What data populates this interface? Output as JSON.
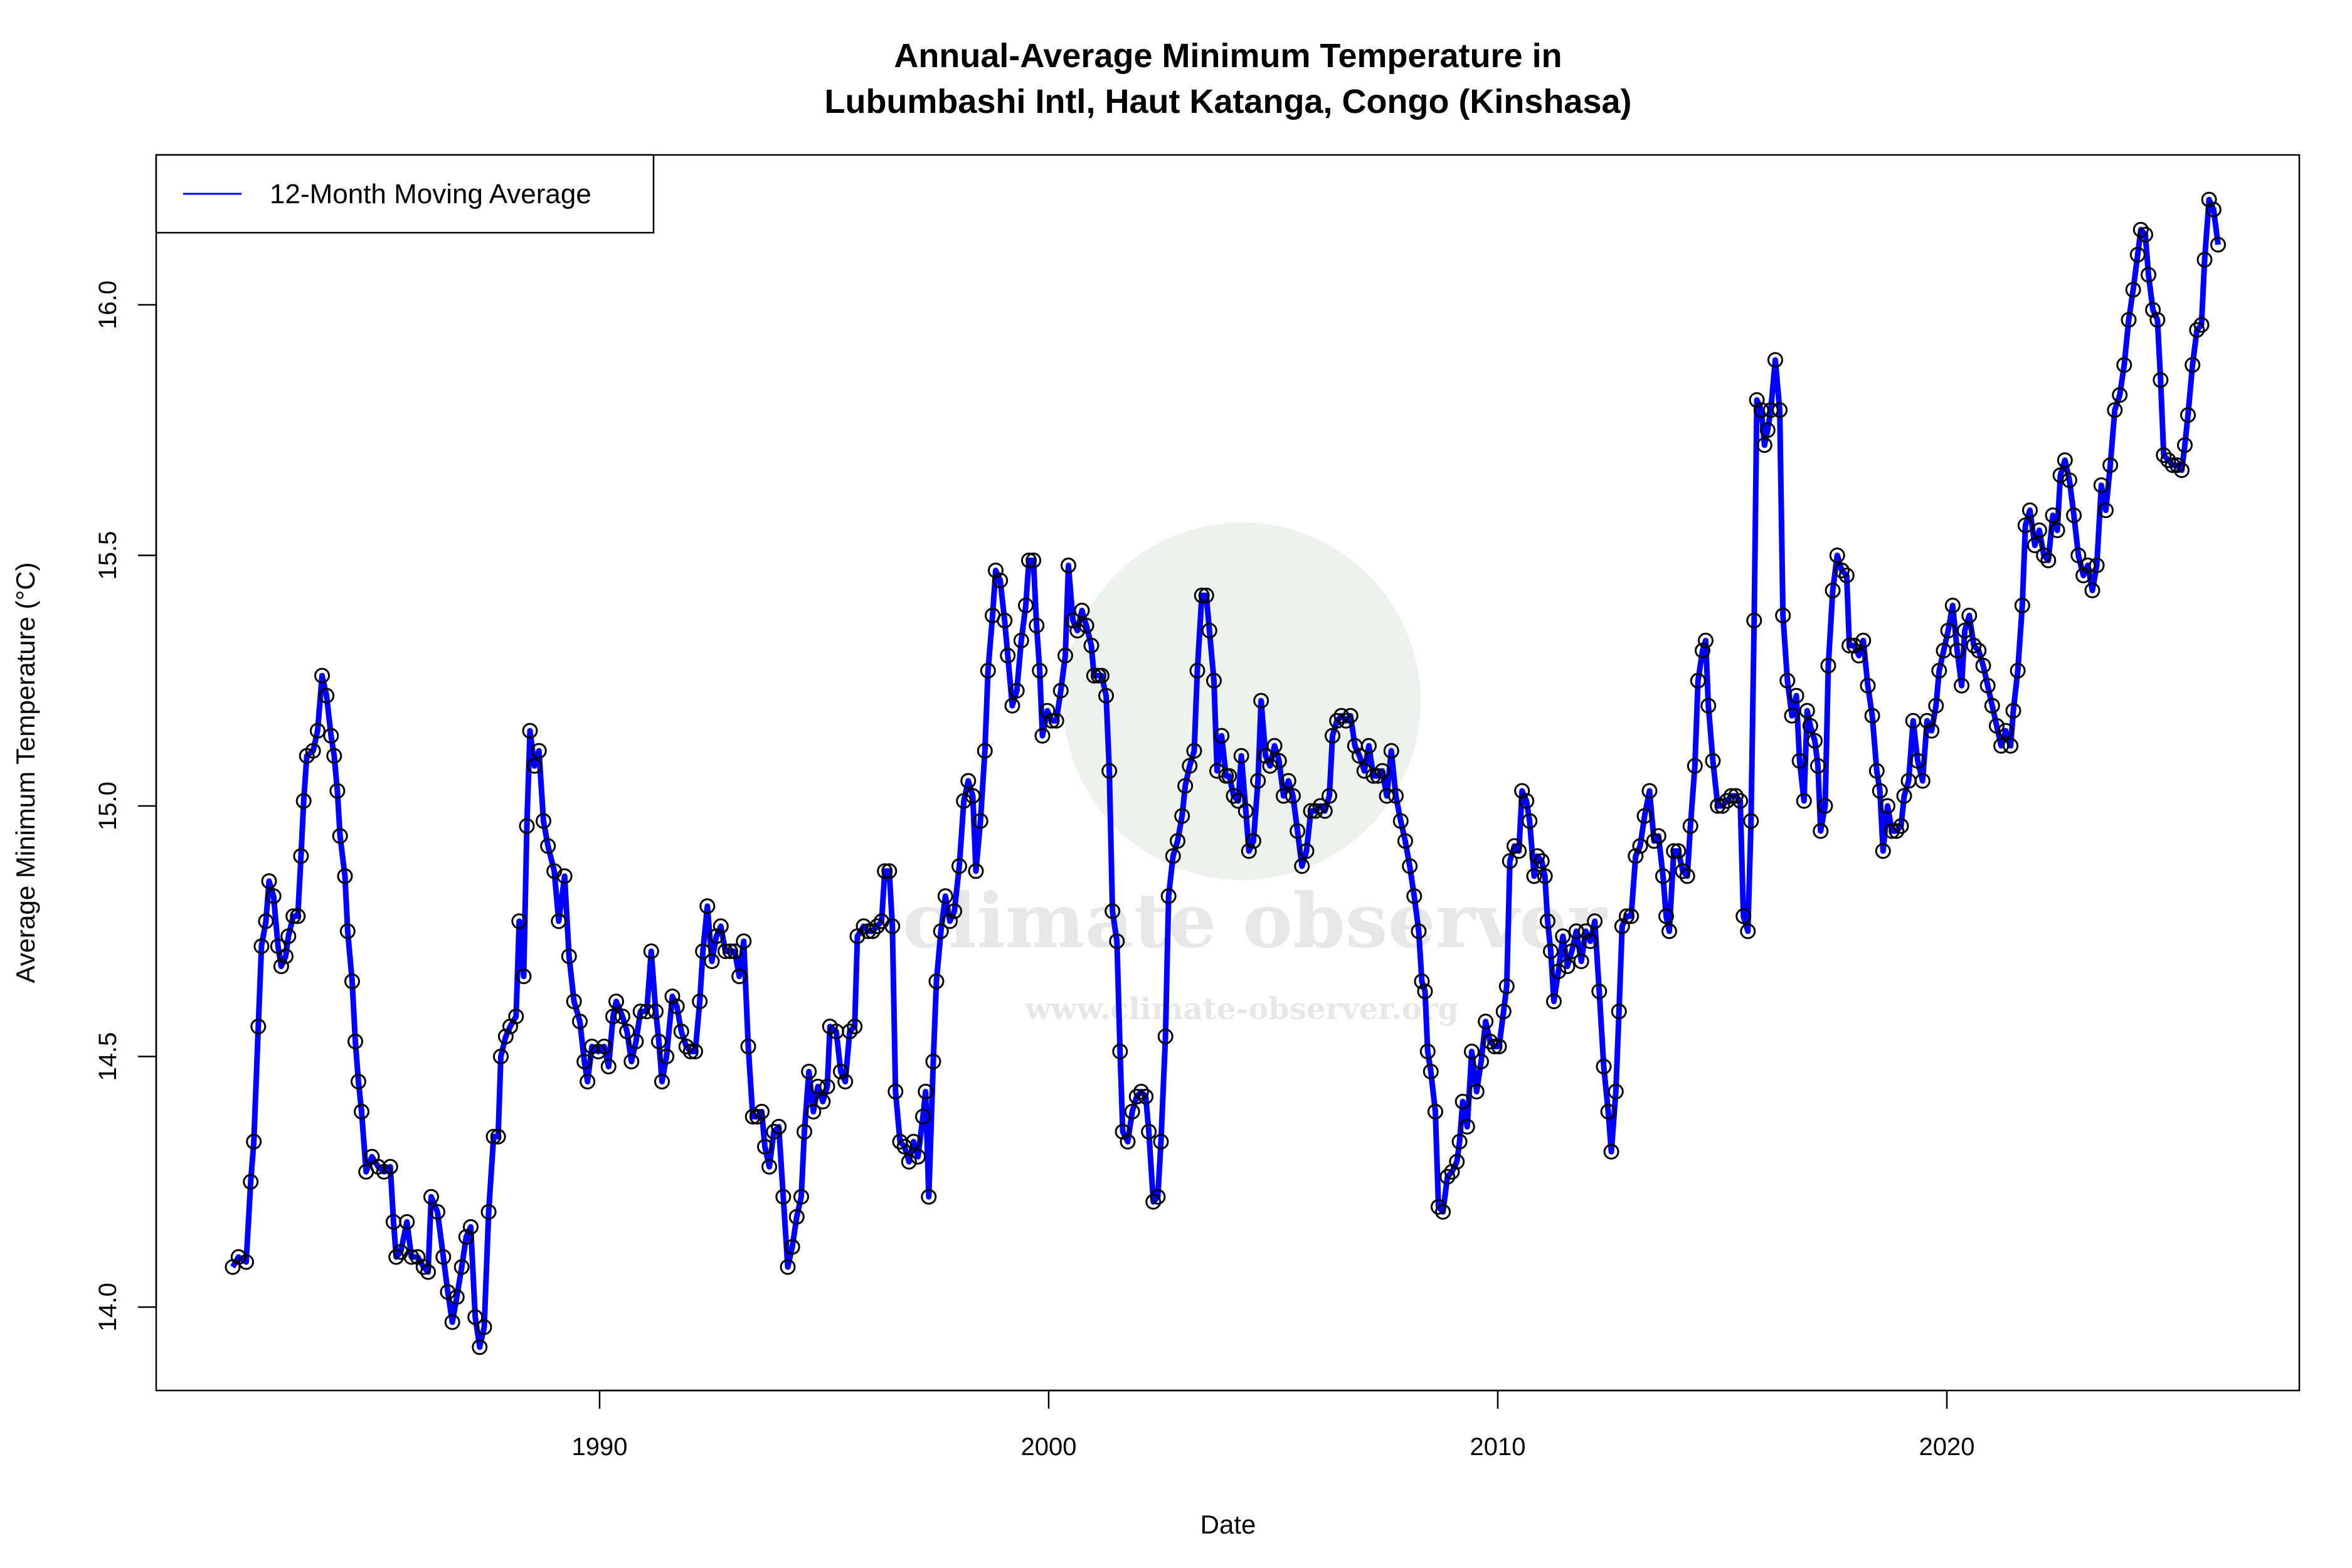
{
  "chart_data": {
    "type": "line",
    "title_line1": "Annual-Average Minimum Temperature in",
    "title_line2": "Lubumbashi Intl, Haut Katanga, Congo (Kinshasa)",
    "xlabel": "Date",
    "ylabel": "Average Minimum Temperature (°C)",
    "xlim": [
      1981.0,
      2026.7
    ],
    "ylim": [
      13.88,
      16.3
    ],
    "x_ticks": [
      1990,
      2000,
      2010,
      2020
    ],
    "x_tick_labels": [
      "1990",
      "2000",
      "2010",
      "2020"
    ],
    "y_ticks": [
      14.0,
      14.5,
      15.0,
      15.5,
      16.0
    ],
    "y_tick_labels": [
      "14.0",
      "14.5",
      "15.0",
      "15.5",
      "16.0"
    ],
    "grid": false,
    "legend": {
      "position": "top-left",
      "entries": [
        "12-Month Moving Average"
      ]
    },
    "line_color": "#0000ff",
    "marker": "open-circle",
    "marker_color": "#000000",
    "watermark": {
      "text": "climate observer",
      "url": "www.climate-observer.org"
    },
    "series": [
      {
        "name": "12-Month Moving Average",
        "x": [
          1981.83,
          1981.96,
          1982.13,
          1982.23,
          1982.3,
          1982.4,
          1982.47,
          1982.57,
          1982.64,
          1982.74,
          1982.84,
          1982.91,
          1983.01,
          1983.07,
          1983.18,
          1983.28,
          1983.35,
          1983.41,
          1983.48,
          1983.62,
          1983.72,
          1983.82,
          1983.92,
          1984.02,
          1984.09,
          1984.16,
          1984.22,
          1984.33,
          1984.39,
          1984.49,
          1984.56,
          1984.63,
          1984.7,
          1984.8,
          1984.93,
          1985.07,
          1985.2,
          1985.34,
          1985.41,
          1985.47,
          1985.57,
          1985.71,
          1985.81,
          1985.95,
          1986.08,
          1986.18,
          1986.25,
          1986.39,
          1986.52,
          1986.62,
          1986.72,
          1986.82,
          1986.93,
          1987.03,
          1987.13,
          1987.23,
          1987.33,
          1987.43,
          1987.53,
          1987.64,
          1987.74,
          1987.8,
          1987.91,
          1988.01,
          1988.14,
          1988.21,
          1988.31,
          1988.38,
          1988.45,
          1988.55,
          1988.65,
          1988.75,
          1988.85,
          1988.99,
          1989.09,
          1989.22,
          1989.32,
          1989.43,
          1989.56,
          1989.66,
          1989.73,
          1989.83,
          1989.97,
          1990.1,
          1990.2,
          1990.3,
          1990.37,
          1990.51,
          1990.61,
          1990.71,
          1990.81,
          1990.91,
          1991.05,
          1991.15,
          1991.25,
          1991.32,
          1991.39,
          1991.49,
          1991.62,
          1991.72,
          1991.82,
          1991.93,
          1992.03,
          1992.13,
          1992.23,
          1992.3,
          1992.4,
          1992.5,
          1992.6,
          1992.7,
          1992.8,
          1992.91,
          1993.01,
          1993.11,
          1993.21,
          1993.31,
          1993.41,
          1993.51,
          1993.61,
          1993.68,
          1993.78,
          1993.88,
          1993.99,
          1994.09,
          1994.19,
          1994.29,
          1994.39,
          1994.49,
          1994.56,
          1994.66,
          1994.76,
          1994.86,
          1994.97,
          1995.07,
          1995.13,
          1995.27,
          1995.37,
          1995.47,
          1995.57,
          1995.68,
          1995.74,
          1995.88,
          1995.98,
          1996.08,
          1996.18,
          1996.28,
          1996.35,
          1996.45,
          1996.52,
          1996.59,
          1996.69,
          1996.79,
          1996.89,
          1996.99,
          1997.09,
          1997.2,
          1997.26,
          1997.33,
          1997.43,
          1997.5,
          1997.6,
          1997.7,
          1997.8,
          1997.9,
          1998.01,
          1998.11,
          1998.21,
          1998.31,
          1998.38,
          1998.48,
          1998.58,
          1998.65,
          1998.75,
          1998.82,
          1998.92,
          1999.02,
          1999.09,
          1999.19,
          1999.29,
          1999.39,
          1999.49,
          1999.56,
          1999.66,
          1999.73,
          1999.8,
          1999.86,
          1999.97,
          2000.07,
          2000.17,
          2000.27,
          2000.37,
          2000.44,
          2000.54,
          2000.64,
          2000.74,
          2000.84,
          2000.95,
          2001.01,
          2001.11,
          2001.18,
          2001.28,
          2001.35,
          2001.42,
          2001.52,
          2001.59,
          2001.65,
          2001.76,
          2001.86,
          2001.96,
          2002.06,
          2002.16,
          2002.23,
          2002.33,
          2002.43,
          2002.5,
          2002.6,
          2002.67,
          2002.77,
          2002.87,
          2002.97,
          2003.04,
          2003.14,
          2003.24,
          2003.31,
          2003.41,
          2003.51,
          2003.58,
          2003.68,
          2003.75,
          2003.85,
          2003.95,
          2004.02,
          2004.12,
          2004.22,
          2004.29,
          2004.39,
          2004.46,
          2004.56,
          2004.66,
          2004.73,
          2004.83,
          2004.93,
          2005.03,
          2005.13,
          2005.23,
          2005.34,
          2005.44,
          2005.54,
          2005.64,
          2005.74,
          2005.84,
          2005.94,
          2006.05,
          2006.15,
          2006.25,
          2006.32,
          2006.42,
          2006.52,
          2006.62,
          2006.72,
          2006.82,
          2006.92,
          2007.03,
          2007.13,
          2007.23,
          2007.33,
          2007.43,
          2007.53,
          2007.63,
          2007.73,
          2007.84,
          2007.94,
          2008.04,
          2008.14,
          2008.24,
          2008.31,
          2008.38,
          2008.44,
          2008.51,
          2008.61,
          2008.68,
          2008.78,
          2008.88,
          2008.98,
          2009.09,
          2009.15,
          2009.22,
          2009.32,
          2009.42,
          2009.53,
          2009.63,
          2009.73,
          2009.83,
          2009.93,
          2010.03,
          2010.13,
          2010.2,
          2010.27,
          2010.37,
          2010.47,
          2010.54,
          2010.64,
          2010.71,
          2010.81,
          2010.88,
          2010.98,
          2011.05,
          2011.11,
          2011.18,
          2011.25,
          2011.35,
          2011.45,
          2011.55,
          2011.65,
          2011.75,
          2011.86,
          2011.96,
          2012.06,
          2012.16,
          2012.26,
          2012.36,
          2012.46,
          2012.53,
          2012.63,
          2012.7,
          2012.77,
          2012.87,
          2012.97,
          2013.07,
          2013.17,
          2013.27,
          2013.38,
          2013.48,
          2013.58,
          2013.68,
          2013.75,
          2013.82,
          2013.92,
          2014.02,
          2014.12,
          2014.22,
          2014.29,
          2014.39,
          2014.46,
          2014.56,
          2014.63,
          2014.69,
          2014.79,
          2014.9,
          2015.0,
          2015.1,
          2015.2,
          2015.3,
          2015.4,
          2015.47,
          2015.57,
          2015.64,
          2015.71,
          2015.77,
          2015.87,
          2015.94,
          2016.01,
          2016.08,
          2016.18,
          2016.28,
          2016.35,
          2016.45,
          2016.55,
          2016.65,
          2016.72,
          2016.82,
          2016.89,
          2016.96,
          2017.06,
          2017.13,
          2017.19,
          2017.29,
          2017.36,
          2017.46,
          2017.56,
          2017.66,
          2017.77,
          2017.83,
          2017.94,
          2018.04,
          2018.14,
          2018.24,
          2018.34,
          2018.44,
          2018.51,
          2018.58,
          2018.68,
          2018.78,
          2018.88,
          2018.98,
          2019.05,
          2019.15,
          2019.25,
          2019.35,
          2019.46,
          2019.56,
          2019.66,
          2019.76,
          2019.83,
          2019.93,
          2020.03,
          2020.13,
          2020.23,
          2020.33,
          2020.4,
          2020.5,
          2020.6,
          2020.71,
          2020.81,
          2020.91,
          2021.01,
          2021.11,
          2021.21,
          2021.31,
          2021.42,
          2021.48,
          2021.58,
          2021.68,
          2021.75,
          2021.85,
          2021.96,
          2022.06,
          2022.16,
          2022.26,
          2022.36,
          2022.46,
          2022.53,
          2022.63,
          2022.73,
          2022.83,
          2022.93,
          2023.04,
          2023.14,
          2023.24,
          2023.34,
          2023.44,
          2023.54,
          2023.64,
          2023.74,
          2023.85,
          2023.95,
          2024.05,
          2024.15,
          2024.25,
          2024.32,
          2024.42,
          2024.49,
          2024.59,
          2024.69,
          2024.76,
          2024.83,
          2024.93,
          2025.03,
          2025.13,
          2025.23,
          2025.3,
          2025.37,
          2025.47,
          2025.57,
          2025.67,
          2025.74,
          2025.84,
          2025.94,
          2026.04
        ],
        "y": [
          14.08,
          14.1,
          14.09,
          14.25,
          14.33,
          14.56,
          14.72,
          14.77,
          14.85,
          14.82,
          14.72,
          14.68,
          14.7,
          14.74,
          14.78,
          14.78,
          14.9,
          15.01,
          15.1,
          15.11,
          15.15,
          15.26,
          15.22,
          15.14,
          15.1,
          15.03,
          14.94,
          14.86,
          14.75,
          14.65,
          14.53,
          14.45,
          14.39,
          14.27,
          14.3,
          14.28,
          14.27,
          14.28,
          14.17,
          14.1,
          14.11,
          14.17,
          14.1,
          14.1,
          14.08,
          14.07,
          14.22,
          14.19,
          14.1,
          14.03,
          13.97,
          14.02,
          14.08,
          14.14,
          14.16,
          13.98,
          13.92,
          13.96,
          14.19,
          14.34,
          14.34,
          14.5,
          14.54,
          14.56,
          14.58,
          14.77,
          14.66,
          14.96,
          15.15,
          15.08,
          15.11,
          14.97,
          14.92,
          14.87,
          14.77,
          14.86,
          14.7,
          14.61,
          14.57,
          14.49,
          14.45,
          14.52,
          14.51,
          14.52,
          14.48,
          14.58,
          14.61,
          14.58,
          14.55,
          14.49,
          14.53,
          14.59,
          14.59,
          14.71,
          14.59,
          14.53,
          14.45,
          14.5,
          14.62,
          14.6,
          14.55,
          14.52,
          14.51,
          14.51,
          14.61,
          14.71,
          14.8,
          14.69,
          14.74,
          14.76,
          14.71,
          14.71,
          14.71,
          14.66,
          14.73,
          14.52,
          14.38,
          14.38,
          14.39,
          14.32,
          14.28,
          14.35,
          14.36,
          14.22,
          14.08,
          14.12,
          14.18,
          14.22,
          14.35,
          14.47,
          14.39,
          14.44,
          14.41,
          14.44,
          14.56,
          14.55,
          14.47,
          14.45,
          14.55,
          14.56,
          14.74,
          14.76,
          14.75,
          14.75,
          14.76,
          14.77,
          14.87,
          14.87,
          14.76,
          14.43,
          14.33,
          14.32,
          14.29,
          14.33,
          14.3,
          14.38,
          14.43,
          14.22,
          14.49,
          14.65,
          14.75,
          14.82,
          14.77,
          14.79,
          14.88,
          15.01,
          15.05,
          15.02,
          14.87,
          14.97,
          15.11,
          15.27,
          15.38,
          15.47,
          15.45,
          15.37,
          15.3,
          15.2,
          15.23,
          15.33,
          15.4,
          15.49,
          15.49,
          15.36,
          15.27,
          15.14,
          15.19,
          15.17,
          15.17,
          15.23,
          15.3,
          15.48,
          15.37,
          15.35,
          15.39,
          15.36,
          15.32,
          15.26,
          15.26,
          15.26,
          15.22,
          15.07,
          14.79,
          14.73,
          14.51,
          14.35,
          14.33,
          14.39,
          14.42,
          14.43,
          14.42,
          14.35,
          14.21,
          14.22,
          14.33,
          14.54,
          14.82,
          14.9,
          14.93,
          14.98,
          15.04,
          15.08,
          15.11,
          15.27,
          15.42,
          15.42,
          15.35,
          15.25,
          15.07,
          15.14,
          15.06,
          15.06,
          15.02,
          15.01,
          15.1,
          14.99,
          14.91,
          14.93,
          15.05,
          15.21,
          15.1,
          15.08,
          15.12,
          15.09,
          15.02,
          15.05,
          15.02,
          14.95,
          14.88,
          14.91,
          14.99,
          14.99,
          15.0,
          14.99,
          15.02,
          15.14,
          15.17,
          15.18,
          15.17,
          15.18,
          15.12,
          15.1,
          15.07,
          15.12,
          15.06,
          15.06,
          15.07,
          15.02,
          15.11,
          15.02,
          14.97,
          14.93,
          14.88,
          14.82,
          14.75,
          14.65,
          14.63,
          14.51,
          14.47,
          14.39,
          14.2,
          14.19,
          14.26,
          14.27,
          14.29,
          14.33,
          14.41,
          14.36,
          14.51,
          14.43,
          14.49,
          14.57,
          14.53,
          14.52,
          14.52,
          14.59,
          14.64,
          14.89,
          14.92,
          14.91,
          15.03,
          15.01,
          14.97,
          14.86,
          14.9,
          14.89,
          14.86,
          14.77,
          14.71,
          14.61,
          14.67,
          14.74,
          14.68,
          14.71,
          14.75,
          14.69,
          14.75,
          14.73,
          14.77,
          14.63,
          14.48,
          14.39,
          14.31,
          14.43,
          14.59,
          14.76,
          14.78,
          14.78,
          14.9,
          14.92,
          14.98,
          15.03,
          14.93,
          14.94,
          14.86,
          14.78,
          14.75,
          14.91,
          14.91,
          14.87,
          14.86,
          14.96,
          15.08,
          15.25,
          15.31,
          15.33,
          15.2,
          15.09,
          15.0,
          15.0,
          15.01,
          15.02,
          15.02,
          15.01,
          14.78,
          14.75,
          14.97,
          15.37,
          15.81,
          15.79,
          15.72,
          15.75,
          15.79,
          15.89,
          15.79,
          15.38,
          15.25,
          15.18,
          15.22,
          15.09,
          15.01,
          15.19,
          15.16,
          15.13,
          15.08,
          14.95,
          15.0,
          15.28,
          15.43,
          15.5,
          15.47,
          15.46,
          15.32,
          15.32,
          15.3,
          15.33,
          15.24,
          15.18,
          15.07,
          15.03,
          14.91,
          15.0,
          14.95,
          14.95,
          14.96,
          15.02,
          15.05,
          15.17,
          15.09,
          15.05,
          15.17,
          15.15,
          15.2,
          15.27,
          15.31,
          15.35,
          15.4,
          15.31,
          15.24,
          15.35,
          15.38,
          15.32,
          15.31,
          15.28,
          15.24,
          15.2,
          15.16,
          15.12,
          15.15,
          15.12,
          15.19,
          15.27,
          15.4,
          15.56,
          15.59,
          15.52,
          15.55,
          15.5,
          15.49,
          15.58,
          15.55,
          15.66,
          15.69,
          15.65,
          15.58,
          15.5,
          15.46,
          15.48,
          15.43,
          15.48,
          15.64,
          15.59,
          15.68,
          15.79,
          15.82,
          15.88,
          15.97,
          16.03,
          16.1,
          16.15,
          16.14,
          16.06,
          15.99,
          15.97,
          15.85,
          15.7,
          15.69,
          15.68,
          15.68,
          15.67,
          15.72,
          15.78,
          15.88,
          15.95,
          15.96,
          16.09,
          16.21,
          16.19,
          16.12
        ]
      }
    ]
  }
}
